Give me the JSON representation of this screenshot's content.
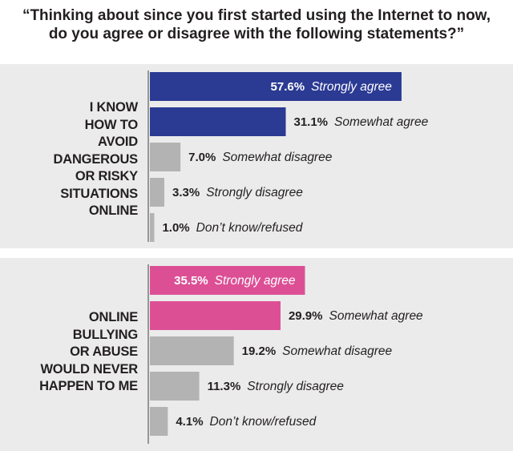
{
  "question": {
    "lines": [
      "“Thinking about since you first started using the Internet to now,",
      "do you agree or disagree with the following statements?”"
    ]
  },
  "colors": {
    "panel_background": "#ebebeb",
    "axis": "#7b7b7b",
    "agree_1": "#2b3a93",
    "agree_2": "#dc4f95",
    "disagree": "#b3b3b3",
    "value_on_bar": "#ffffff",
    "text": "#231f20"
  },
  "chart_data": [
    {
      "type": "bar",
      "orientation": "horizontal",
      "statement_lines": [
        "I KNOW",
        "HOW TO",
        "AVOID",
        "DANGEROUS",
        "OR RISKY",
        "SITUATIONS",
        "ONLINE"
      ],
      "categories": [
        "Strongly agree",
        "Somewhat agree",
        "Somewhat disagree",
        "Strongly disagree",
        "Don’t know/refused"
      ],
      "values": [
        57.6,
        31.1,
        7.0,
        3.3,
        1.0
      ],
      "value_labels": [
        "57.6%",
        "31.1%",
        "7.0%",
        "3.3%",
        "1.0%"
      ],
      "bar_colors": [
        "#2b3a93",
        "#2b3a93",
        "#b3b3b3",
        "#b3b3b3",
        "#b3b3b3"
      ],
      "xlim": [
        0,
        100
      ],
      "grid": false,
      "legend": "none"
    },
    {
      "type": "bar",
      "orientation": "horizontal",
      "statement_lines": [
        "ONLINE",
        "BULLYING",
        "OR ABUSE",
        "WOULD NEVER",
        "HAPPEN TO ME"
      ],
      "categories": [
        "Strongly agree",
        "Somewhat agree",
        "Somewhat disagree",
        "Strongly disagree",
        "Don’t know/refused"
      ],
      "values": [
        35.5,
        29.9,
        19.2,
        11.3,
        4.1
      ],
      "value_labels": [
        "35.5%",
        "29.9%",
        "19.2%",
        "11.3%",
        "4.1%"
      ],
      "bar_colors": [
        "#dc4f95",
        "#dc4f95",
        "#b3b3b3",
        "#b3b3b3",
        "#b3b3b3"
      ],
      "xlim": [
        0,
        100
      ],
      "grid": false,
      "legend": "none"
    }
  ]
}
